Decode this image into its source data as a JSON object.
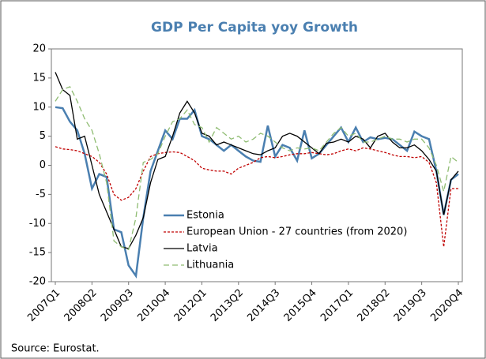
{
  "chart_data": {
    "type": "line",
    "title": "GDP Per Capita yoy Growth",
    "source": "Source: Eurostat.",
    "categories": [
      "2007Q1",
      null,
      null,
      null,
      null,
      "2008Q2",
      null,
      null,
      null,
      null,
      "2009Q3",
      null,
      null,
      null,
      null,
      "2010Q4",
      null,
      null,
      null,
      null,
      "2012Q1",
      null,
      null,
      null,
      null,
      "2013Q2",
      null,
      null,
      null,
      null,
      "2014Q3",
      null,
      null,
      null,
      null,
      "2015Q4",
      null,
      null,
      null,
      null,
      "2017Q1",
      null,
      null,
      null,
      null,
      "2018Q2",
      null,
      null,
      null,
      null,
      "2019Q3",
      null,
      null,
      null,
      null,
      "2020Q4"
    ],
    "series": [
      {
        "name": "Estonia",
        "color": "#4a7fb0",
        "style": "solid",
        "values": [
          10,
          9.8,
          7.5,
          6,
          2,
          -4,
          -1.5,
          -2,
          -11,
          -11.5,
          -17.2,
          -19,
          -9,
          -1,
          2.5,
          6,
          4.5,
          8,
          8,
          9.5,
          5,
          4.5,
          3.5,
          2.5,
          3.5,
          2.5,
          1.5,
          0.8,
          0.6,
          6.8,
          1.5,
          3.5,
          3,
          0.8,
          6,
          1.2,
          2,
          3.5,
          5,
          6.5,
          4,
          6.5,
          4,
          4.8,
          4.5,
          4.7,
          4.5,
          3.5,
          2.5,
          5.8,
          5,
          4.5,
          -1,
          -8.5,
          -2.5,
          -1.5
        ]
      },
      {
        "name": "European Union - 27 countries (from 2020)",
        "color": "#c00000",
        "style": "dashed",
        "values": [
          3.2,
          2.8,
          2.7,
          2.5,
          2,
          1.5,
          0.5,
          -1.5,
          -5,
          -6,
          -5.5,
          -4,
          -1,
          1.5,
          2,
          2.2,
          2.3,
          2.2,
          1.5,
          0.8,
          -0.5,
          -0.8,
          -1,
          -1,
          -1.5,
          -0.5,
          0,
          0.5,
          1.3,
          1.5,
          1.3,
          1.5,
          1.8,
          2,
          2,
          2.2,
          2,
          1.8,
          2,
          2.5,
          2.8,
          2.5,
          3,
          2.8,
          2.5,
          2.2,
          1.8,
          1.5,
          1.5,
          1.3,
          1.5,
          0.5,
          -3,
          -14,
          -4,
          -4
        ]
      },
      {
        "name": "Latvia",
        "color": "#000000",
        "style": "solid",
        "values": [
          16,
          13,
          12,
          4.5,
          5,
          0,
          -5,
          -8,
          -11,
          -14,
          -14.3,
          -12,
          -9,
          -3,
          1,
          1.5,
          5,
          9,
          11,
          9,
          5.5,
          5,
          3.5,
          4,
          3.5,
          3,
          2.5,
          2,
          1.8,
          2.5,
          3,
          5,
          5.5,
          5,
          4,
          3,
          2,
          3.8,
          4,
          4.5,
          4,
          5,
          4.5,
          3,
          5,
          5.5,
          4,
          3,
          3,
          3.5,
          2.5,
          1,
          -1,
          -8.5,
          -2.5,
          -1
        ]
      },
      {
        "name": "Lithuania",
        "color": "#8fbc72",
        "style": "dashed",
        "values": [
          11,
          13,
          13.5,
          11,
          8,
          6,
          2,
          -3,
          -13,
          -14,
          -14.5,
          -9,
          0.5,
          1,
          2,
          5,
          7.5,
          8,
          9.5,
          7,
          6.5,
          4,
          6.5,
          5.5,
          4.5,
          5,
          4,
          4.5,
          5.5,
          5,
          4,
          3,
          2.5,
          3,
          2.8,
          3,
          2.5,
          4,
          5.5,
          6.5,
          5,
          5.5,
          4,
          4,
          4.5,
          5,
          4.5,
          4.5,
          4,
          4.5,
          4.5,
          3,
          0,
          -4.5,
          1.5,
          0.5
        ]
      }
    ],
    "ylim": [
      -20,
      20
    ],
    "yticks": [
      -20,
      -15,
      -10,
      -5,
      0,
      5,
      10,
      15,
      20
    ],
    "grid": false,
    "legend": "center"
  }
}
